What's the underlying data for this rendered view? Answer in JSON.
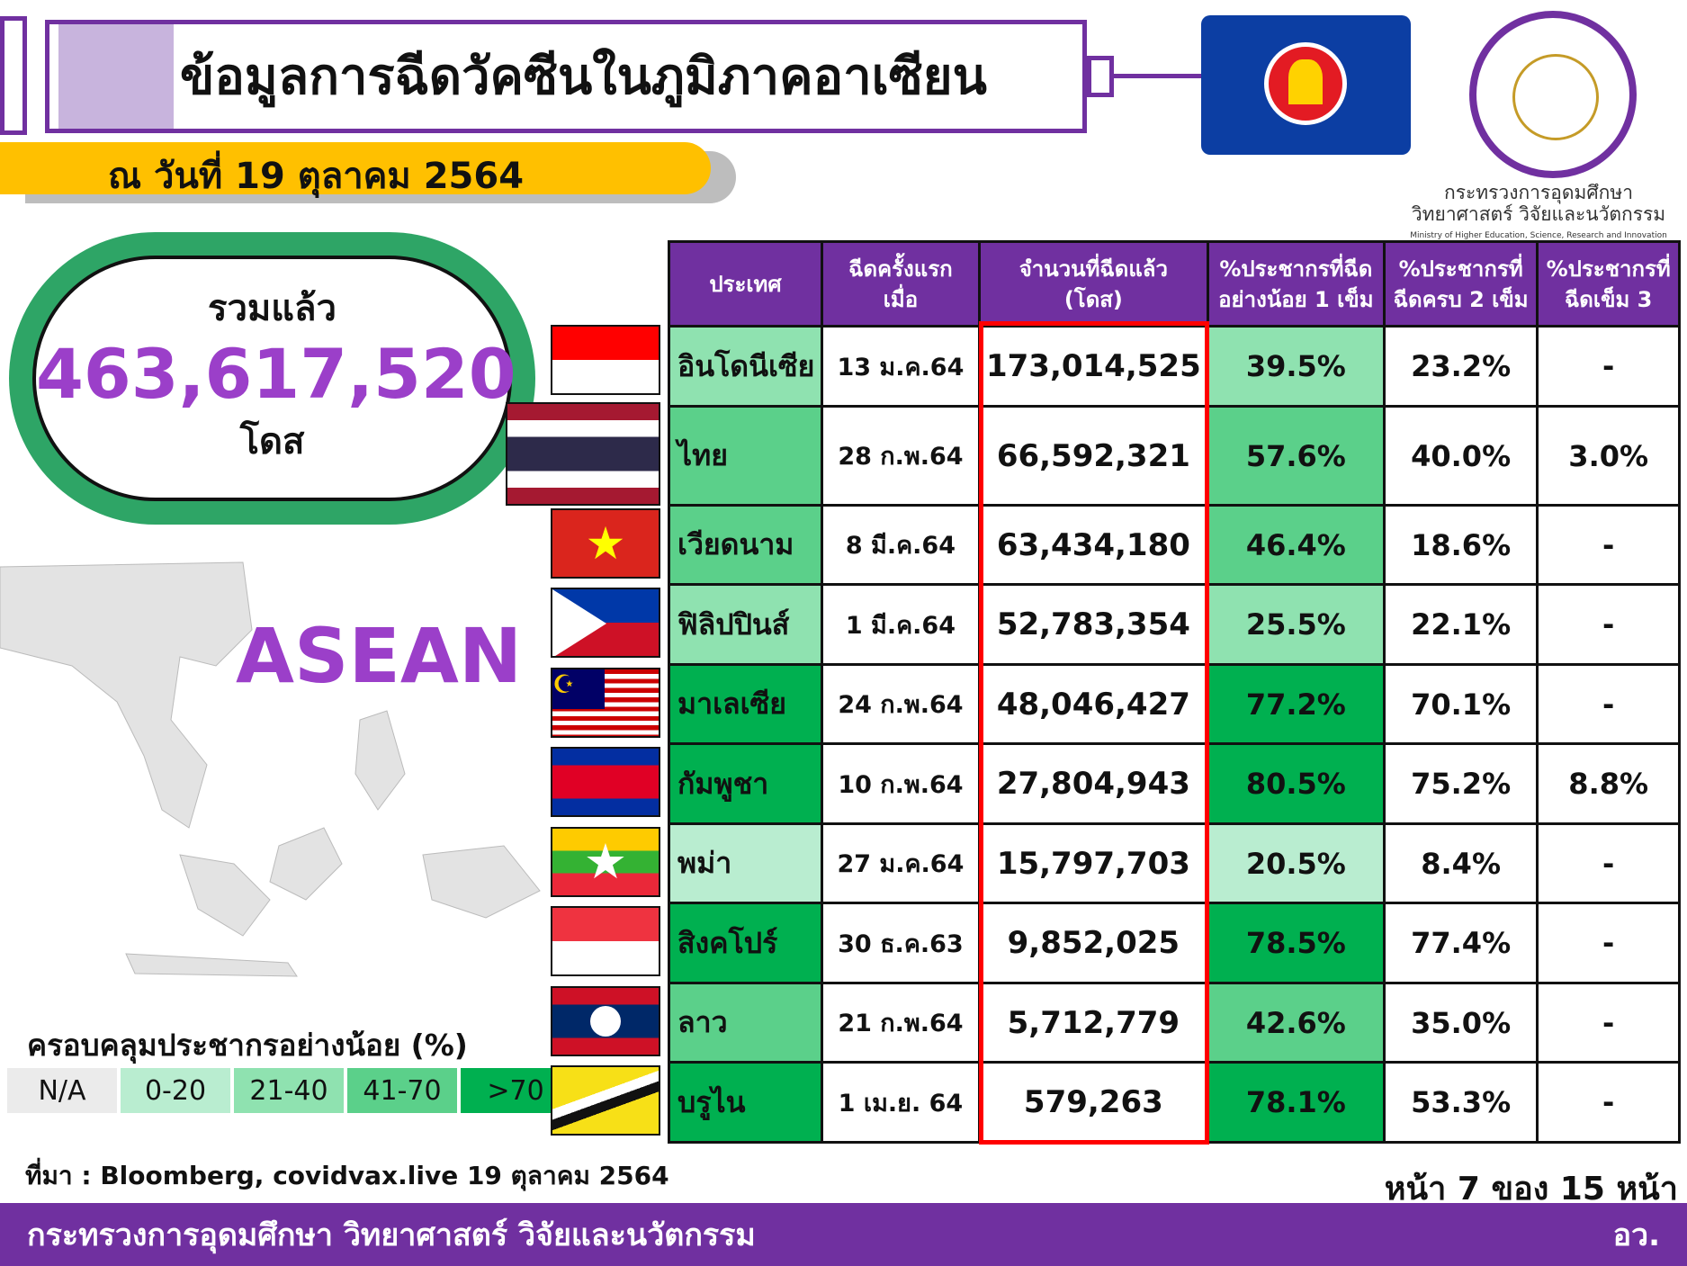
{
  "header": {
    "title": "ข้อมูลการฉีดวัคซีนในภูมิภาคอาเซียน",
    "date": "ณ วันที่ 19 ตุลาคม 2564"
  },
  "org": {
    "name_th_1": "กระทรวงการอุดมศึกษา",
    "name_th_2": "วิทยาศาสตร์ วิจัยและนวัตกรรม",
    "name_en": "Ministry of Higher Education, Science, Research and Innovation"
  },
  "total": {
    "label": "รวมแล้ว",
    "value": "463,617,520",
    "unit": "โดส"
  },
  "map_label": "ASEAN",
  "legend": {
    "title": "ครอบคลุมประชากรอย่างน้อย (%)",
    "items": [
      {
        "label": "N/A",
        "color": "#ebebeb"
      },
      {
        "label": "0-20",
        "color": "#b9edd0"
      },
      {
        "label": "21-40",
        "color": "#8fe2b0"
      },
      {
        "label": "41-70",
        "color": "#5bd08a"
      },
      {
        "label": ">70",
        "color": "#00b050"
      }
    ]
  },
  "table": {
    "headers": [
      "ประเทศ",
      "ฉีดครั้งแรก\nเมื่อ",
      "จำนวนที่ฉีดแล้ว\n(โดส)",
      "%ประชากรที่ฉีด\nอย่างน้อย 1 เข็ม",
      "%ประชากรที่\nฉีดครบ 2 เข็ม",
      "%ประชากรที่\nฉีดเข็ม 3"
    ],
    "rows": [
      {
        "country": "อินโดนีเซีย",
        "date": "13 ม.ค.64",
        "doses": "173,014,525",
        "one": "39.5%",
        "two": "23.2%",
        "three": "-",
        "color": "#8fe2b0",
        "flag": "indonesia"
      },
      {
        "country": "ไทย",
        "date": "28 ก.พ.64",
        "doses": "66,592,321",
        "one": "57.6%",
        "two": "40.0%",
        "three": "3.0%",
        "color": "#5bd08a",
        "flag": "thailand"
      },
      {
        "country": "เวียดนาม",
        "date": "8 มี.ค.64",
        "doses": "63,434,180",
        "one": "46.4%",
        "two": "18.6%",
        "three": "-",
        "color": "#5bd08a",
        "flag": "vietnam"
      },
      {
        "country": "ฟิลิปปินส์",
        "date": "1 มี.ค.64",
        "doses": "52,783,354",
        "one": "25.5%",
        "two": "22.1%",
        "three": "-",
        "color": "#8fe2b0",
        "flag": "philippines"
      },
      {
        "country": "มาเลเซีย",
        "date": "24 ก.พ.64",
        "doses": "48,046,427",
        "one": "77.2%",
        "two": "70.1%",
        "three": "-",
        "color": "#00b050",
        "flag": "malaysia"
      },
      {
        "country": "กัมพูชา",
        "date": "10 ก.พ.64",
        "doses": "27,804,943",
        "one": "80.5%",
        "two": "75.2%",
        "three": "8.8%",
        "color": "#00b050",
        "flag": "cambodia"
      },
      {
        "country": "พม่า",
        "date": "27 ม.ค.64",
        "doses": "15,797,703",
        "one": "20.5%",
        "two": "8.4%",
        "three": "-",
        "color": "#b9edd0",
        "flag": "myanmar"
      },
      {
        "country": "สิงคโปร์",
        "date": "30 ธ.ค.63",
        "doses": "9,852,025",
        "one": "78.5%",
        "two": "77.4%",
        "three": "-",
        "color": "#00b050",
        "flag": "singapore"
      },
      {
        "country": "ลาว",
        "date": "21 ก.พ.64",
        "doses": "5,712,779",
        "one": "42.6%",
        "two": "35.0%",
        "three": "-",
        "color": "#5bd08a",
        "flag": "laos"
      },
      {
        "country": "บรูไน",
        "date": "1 เม.ย. 64",
        "doses": "579,263",
        "one": "78.1%",
        "two": "53.3%",
        "three": "-",
        "color": "#00b050",
        "flag": "brunei"
      }
    ]
  },
  "source": "ที่มา : Bloomberg, covidvax.live 19 ตุลาคม 2564",
  "page": "หน้า 7 ของ 15 หน้า",
  "footer": {
    "ministry": "กระทรวงการอุดมศึกษา วิทยาศาสตร์ วิจัยและนวัตกรรม",
    "abbr": "อว."
  }
}
